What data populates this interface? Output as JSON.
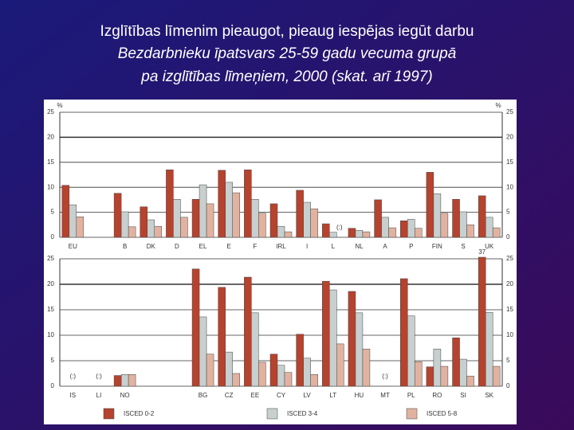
{
  "title": [
    "Izglītības līmenim pieaugot, pieaug iespējas iegūt darbu",
    "Bezdarbnieku īpatsvars 25-59 gadu vecuma grupā",
    "pa izglītības līmeņiem, 2000 (skat. arī 1997)"
  ],
  "chart_data": {
    "type": "bar",
    "y_unit": "%",
    "categories": [
      "EU",
      null,
      "B",
      "DK",
      "D",
      "EL",
      "E",
      "F",
      "IRL",
      "I",
      "L",
      "NL",
      "A",
      "P",
      "FIN",
      "S",
      "UK",
      "IS",
      "LI",
      "NO",
      null,
      null,
      "BG",
      "CZ",
      "EE",
      "CY",
      "LV",
      "LT",
      "HU",
      "MT",
      "PL",
      "RO",
      "SI",
      "SK"
    ],
    "series": [
      {
        "name": "ISCED 0-2",
        "color": "#b5432e",
        "values": [
          10.4,
          null,
          8.8,
          6.1,
          13.5,
          7.6,
          13.4,
          13.5,
          6.7,
          9.4,
          2.7,
          1.8,
          7.5,
          3.3,
          13.0,
          7.6,
          8.3,
          null,
          null,
          2.1,
          null,
          null,
          23.0,
          19.4,
          21.4,
          6.3,
          10.2,
          20.6,
          18.6,
          null,
          21.1,
          3.8,
          9.5,
          37
        ],
        "value_labels": [
          null,
          null,
          null,
          null,
          null,
          null,
          null,
          null,
          null,
          null,
          null,
          null,
          null,
          null,
          null,
          null,
          null,
          null,
          null,
          null,
          null,
          null,
          null,
          null,
          null,
          null,
          null,
          null,
          null,
          null,
          null,
          null,
          null,
          "37"
        ]
      },
      {
        "name": "ISCED 3-4",
        "color": "#c8cfcf",
        "values": [
          6.5,
          null,
          5.1,
          3.5,
          7.6,
          10.5,
          11.0,
          7.6,
          2.2,
          7.0,
          1.0,
          1.4,
          4.0,
          3.6,
          8.7,
          5.1,
          4.0,
          null,
          null,
          2.3,
          null,
          null,
          13.6,
          6.7,
          14.4,
          4.1,
          5.5,
          18.9,
          14.4,
          null,
          13.8,
          7.3,
          5.3,
          14.5
        ]
      },
      {
        "name": "ISCED 5-8",
        "color": "#e2b2a0",
        "values": [
          4.1,
          null,
          2.1,
          2.2,
          4.0,
          6.7,
          8.9,
          4.8,
          1.1,
          5.7,
          null,
          1.1,
          1.9,
          1.8,
          4.8,
          2.5,
          1.9,
          null,
          null,
          2.3,
          null,
          null,
          6.3,
          2.5,
          4.7,
          2.7,
          2.3,
          8.3,
          7.3,
          null,
          4.8,
          3.9,
          2.0,
          3.9
        ]
      }
    ],
    "annotations": [
      {
        "label": "(:)",
        "x": "L"
      },
      {
        "label": "(:)",
        "x": "IS"
      },
      {
        "label": "(:)",
        "x": "LI"
      },
      {
        "label": "(:)",
        "x": "MT"
      }
    ],
    "ylim": [
      0,
      25
    ],
    "yticks": [
      0,
      5,
      10,
      15,
      20,
      25
    ],
    "grid": true,
    "legend": "bottom"
  }
}
